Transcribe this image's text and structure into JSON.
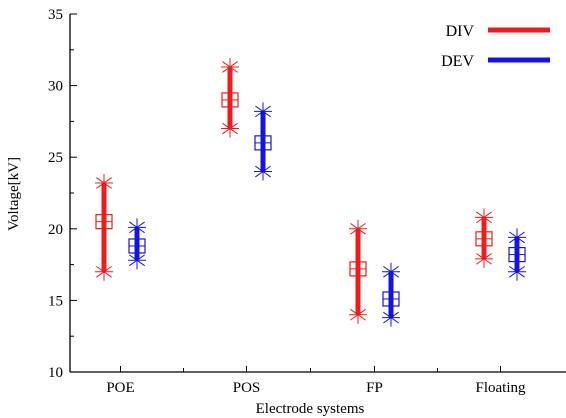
{
  "chart_data": {
    "type": "range",
    "categories": [
      "POE",
      "POS",
      "FP",
      "Floating"
    ],
    "series": [
      {
        "name": "DIV",
        "color": "#ee1c1c",
        "low": [
          17.0,
          27.0,
          14.0,
          17.9
        ],
        "mean": [
          20.5,
          29.0,
          17.2,
          19.3
        ],
        "high": [
          23.2,
          31.3,
          20.0,
          20.8
        ]
      },
      {
        "name": "DEV",
        "color": "#1414e0",
        "low": [
          17.8,
          24.0,
          13.8,
          17.0
        ],
        "mean": [
          18.8,
          26.0,
          15.1,
          18.2
        ],
        "high": [
          20.1,
          28.2,
          17.0,
          19.4
        ]
      }
    ],
    "title": "",
    "xlabel": "Electrode systems",
    "ylabel": "Voltage[kV]",
    "ylim": [
      10,
      35
    ],
    "yticks": [
      10,
      15,
      20,
      25,
      30,
      35
    ],
    "grid": false,
    "legend_position": "top-right"
  }
}
